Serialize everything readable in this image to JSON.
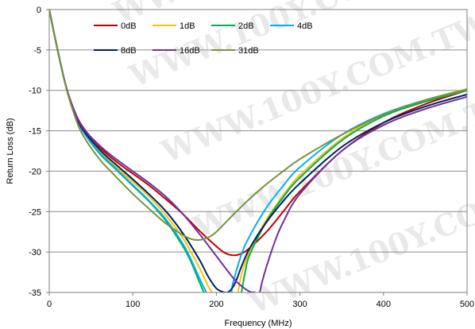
{
  "watermark_text": "WWW.100Y.COM.TW",
  "chart_data": {
    "type": "line",
    "title": "",
    "xlabel": "Frequency (MHz)",
    "ylabel": "Return Loss (dB)",
    "xlim": [
      0,
      500
    ],
    "ylim": [
      -35,
      0
    ],
    "xticks": [
      0,
      100,
      200,
      300,
      400,
      500
    ],
    "yticks": [
      0,
      -5,
      -10,
      -15,
      -20,
      -25,
      -30,
      -35
    ],
    "grid": "horizontal",
    "legend_position": "top",
    "series": [
      {
        "name": "0dB",
        "color": "#c00000",
        "x": [
          0,
          10,
          20,
          30,
          40,
          60,
          80,
          100,
          120,
          140,
          160,
          180,
          200,
          210,
          220,
          230,
          240,
          260,
          280,
          300,
          350,
          400,
          450,
          500
        ],
        "y": [
          0,
          -5,
          -9.5,
          -12.5,
          -14.5,
          -17,
          -18.8,
          -20.3,
          -21.8,
          -23.5,
          -25.3,
          -27.4,
          -29.3,
          -30.1,
          -30.4,
          -30.2,
          -29.5,
          -27.5,
          -25,
          -22.5,
          -17.5,
          -14,
          -11.7,
          -10
        ]
      },
      {
        "name": "1dB",
        "color": "#ffc000",
        "x": [
          0,
          10,
          20,
          30,
          40,
          60,
          80,
          100,
          120,
          140,
          160,
          170,
          180,
          190,
          195
        ],
        "y": [
          0,
          -5,
          -9.5,
          -12.7,
          -14.8,
          -17.5,
          -19.5,
          -21.3,
          -23.2,
          -25.5,
          -28.3,
          -30.1,
          -32,
          -34.2,
          -35
        ]
      },
      {
        "name": "1dB",
        "color": "#ffc000",
        "x": [
          226,
          230,
          240,
          260,
          280,
          300,
          350,
          400,
          450,
          500
        ],
        "y": [
          -35,
          -32.8,
          -29.8,
          -26,
          -23,
          -20.5,
          -16,
          -13,
          -11.2,
          -9.8
        ]
      },
      {
        "name": "2dB",
        "color": "#00b050",
        "x": [
          0,
          10,
          20,
          30,
          40,
          60,
          80,
          100,
          120,
          140,
          160,
          170,
          180,
          185
        ],
        "y": [
          0,
          -5,
          -9.5,
          -12.8,
          -15,
          -17.8,
          -19.8,
          -21.8,
          -23.8,
          -26.2,
          -29.3,
          -31.3,
          -33.8,
          -35
        ]
      },
      {
        "name": "2dB",
        "color": "#00b050",
        "x": [
          230,
          235,
          240,
          260,
          280,
          300,
          350,
          400,
          450,
          500
        ],
        "y": [
          -35,
          -32.2,
          -30.3,
          -26.2,
          -23.2,
          -20.8,
          -16.2,
          -13.2,
          -11.4,
          -10
        ]
      },
      {
        "name": "4dB",
        "color": "#00b0f0",
        "x": [
          0,
          10,
          20,
          30,
          40,
          60,
          80,
          100,
          120,
          140,
          160,
          170,
          180,
          188
        ],
        "y": [
          0,
          -5,
          -9.5,
          -12.8,
          -15,
          -17.7,
          -19.7,
          -21.7,
          -23.7,
          -26,
          -29,
          -31,
          -33.3,
          -35
        ]
      },
      {
        "name": "4dB",
        "color": "#00b0f0",
        "x": [
          218,
          220,
          230,
          240,
          260,
          280,
          300,
          350,
          400,
          450,
          500
        ],
        "y": [
          -35,
          -33.8,
          -30.3,
          -28,
          -24.5,
          -21.8,
          -19.5,
          -15.5,
          -12.9,
          -11.2,
          -9.9
        ]
      },
      {
        "name": "8dB",
        "color": "#002060",
        "x": [
          0,
          10,
          20,
          30,
          40,
          60,
          80,
          100,
          120,
          140,
          160,
          180,
          190,
          200,
          210,
          215,
          220,
          225,
          230,
          240,
          260,
          280,
          300,
          350,
          400,
          450,
          500
        ],
        "y": [
          0,
          -5,
          -9.5,
          -12.7,
          -14.8,
          -17.3,
          -19.2,
          -21,
          -22.9,
          -25,
          -27.7,
          -31,
          -33,
          -34.5,
          -35,
          -34.9,
          -34.3,
          -33.2,
          -31.8,
          -29.5,
          -26.3,
          -23.7,
          -21.5,
          -17,
          -14,
          -12,
          -10.5
        ]
      },
      {
        "name": "16dB",
        "color": "#7030a0",
        "x": [
          0,
          10,
          20,
          30,
          40,
          60,
          80,
          100,
          120,
          140,
          160,
          180,
          200,
          220,
          230,
          240,
          246
        ],
        "y": [
          0,
          -5,
          -9.5,
          -12.5,
          -14.6,
          -16.8,
          -18.5,
          -20,
          -21.5,
          -23.2,
          -25.3,
          -27.8,
          -30.5,
          -33.2,
          -34.2,
          -34.9,
          -35
        ]
      },
      {
        "name": "16dB",
        "color": "#7030a0",
        "x": [
          252,
          255,
          260,
          270,
          280,
          300,
          350,
          400,
          450,
          500
        ],
        "y": [
          -35,
          -33.6,
          -31.8,
          -28.7,
          -26.3,
          -22.8,
          -17.5,
          -14.3,
          -12.3,
          -10.8
        ]
      },
      {
        "name": "31dB",
        "color": "#77933c",
        "x": [
          0,
          10,
          20,
          30,
          40,
          60,
          80,
          100,
          120,
          140,
          160,
          170,
          180,
          190,
          200,
          220,
          240,
          260,
          280,
          300,
          350,
          400,
          450,
          500
        ],
        "y": [
          0,
          -5,
          -9.6,
          -13,
          -15.5,
          -18.5,
          -20.7,
          -22.8,
          -24.7,
          -26.5,
          -27.9,
          -28.4,
          -28.5,
          -28.2,
          -27.5,
          -25.4,
          -23.4,
          -21.6,
          -20,
          -18.5,
          -15.5,
          -13,
          -11.2,
          -9.9
        ]
      }
    ]
  }
}
